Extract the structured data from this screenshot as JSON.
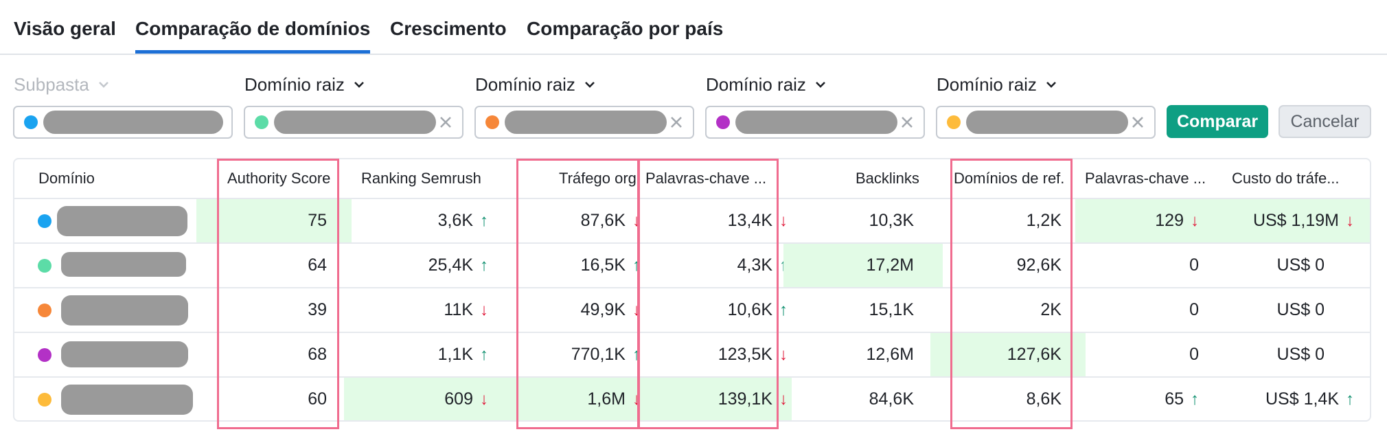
{
  "tabs": [
    {
      "label": "Visão geral",
      "active": false
    },
    {
      "label": "Comparação de domínios",
      "active": true
    },
    {
      "label": "Crescimento",
      "active": false
    },
    {
      "label": "Comparação por país",
      "active": false
    }
  ],
  "selectors": [
    {
      "label": "Subpasta",
      "disabled": true,
      "color": "#1aa3f0",
      "clearable": false
    },
    {
      "label": "Domínio raiz",
      "disabled": false,
      "color": "#5cdca7",
      "clearable": true
    },
    {
      "label": "Domínio raiz",
      "disabled": false,
      "color": "#f68739",
      "clearable": true
    },
    {
      "label": "Domínio raiz",
      "disabled": false,
      "color": "#b331c6",
      "clearable": true
    },
    {
      "label": "Domínio raiz",
      "disabled": false,
      "color": "#fdbb3b",
      "clearable": true
    }
  ],
  "buttons": {
    "compare": "Comparar",
    "cancel": "Cancelar"
  },
  "table": {
    "headers": [
      "Domínio",
      "Authority Score",
      "Ranking Semrush",
      "Tráfego org.",
      "Palavras-chave ...",
      "Backlinks",
      "Domínios de ref.",
      "Palavras-chave ...",
      "Custo do tráfe..."
    ],
    "rows": [
      {
        "color": "#1aa3f0",
        "authority": "75",
        "ranking": "3,6K",
        "ranking_trend": "up",
        "traffic": "87,6K",
        "traffic_trend": "down",
        "keywords": "13,4K",
        "keywords_trend": "down",
        "backlinks": "10,3K",
        "refdomains": "1,2K",
        "paid_keywords": "129",
        "paid_keywords_trend": "down",
        "cost": "US$ 1,19M",
        "cost_trend": "down"
      },
      {
        "color": "#5cdca7",
        "authority": "64",
        "ranking": "25,4K",
        "ranking_trend": "up",
        "traffic": "16,5K",
        "traffic_trend": "up",
        "keywords": "4,3K",
        "keywords_trend": "up",
        "backlinks": "17,2M",
        "refdomains": "92,6K",
        "paid_keywords": "0",
        "paid_keywords_trend": "",
        "cost": "US$ 0",
        "cost_trend": ""
      },
      {
        "color": "#f68739",
        "authority": "39",
        "ranking": "11K",
        "ranking_trend": "down",
        "traffic": "49,9K",
        "traffic_trend": "down",
        "keywords": "10,6K",
        "keywords_trend": "up",
        "backlinks": "15,1K",
        "refdomains": "2K",
        "paid_keywords": "0",
        "paid_keywords_trend": "",
        "cost": "US$ 0",
        "cost_trend": ""
      },
      {
        "color": "#b331c6",
        "authority": "68",
        "ranking": "1,1K",
        "ranking_trend": "up",
        "traffic": "770,1K",
        "traffic_trend": "up",
        "keywords": "123,5K",
        "keywords_trend": "down",
        "backlinks": "12,6M",
        "refdomains": "127,6K",
        "paid_keywords": "0",
        "paid_keywords_trend": "",
        "cost": "US$ 0",
        "cost_trend": ""
      },
      {
        "color": "#fdbb3b",
        "authority": "60",
        "ranking": "609",
        "ranking_trend": "down",
        "traffic": "1,6M",
        "traffic_trend": "down",
        "keywords": "139,1K",
        "keywords_trend": "down",
        "backlinks": "84,6K",
        "refdomains": "8,6K",
        "paid_keywords": "65",
        "paid_keywords_trend": "up",
        "cost": "US$ 1,4K",
        "cost_trend": "up"
      }
    ]
  },
  "colors": {
    "accent": "#1c6fd6",
    "primary_button": "#0e9f83",
    "highlight_cell": "#e2fbe6",
    "highlight_box": "#f06c8f",
    "trend_up": "#0e8f6e",
    "trend_down": "#e0193a"
  }
}
